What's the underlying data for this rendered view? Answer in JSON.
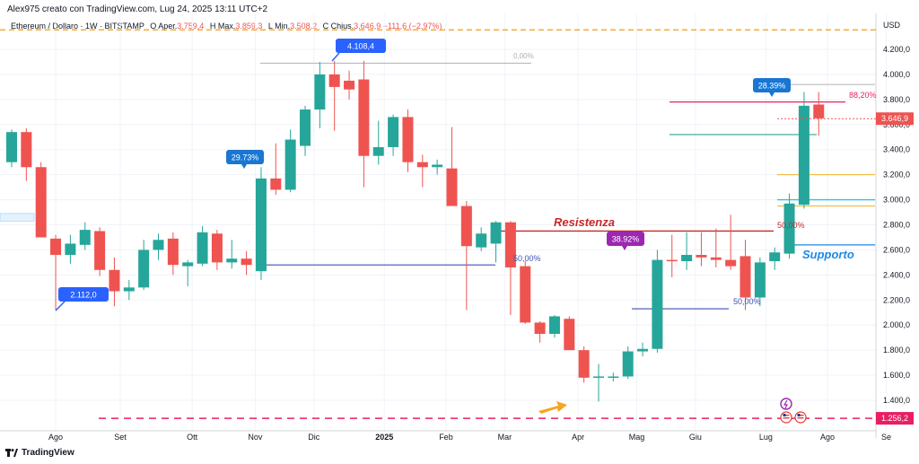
{
  "header": {
    "author_line": "Alex975 creato con TradingView.com, Lug 24, 2025 13:11 UTC+2",
    "symbol": "Ethereum / Dollaro · 1W · BITSTAMP",
    "ohlc": {
      "open_label": "O",
      "open_prefix": "Aper.",
      "open": "3.759,4",
      "high_label": "H",
      "high_prefix": "Max.",
      "high": "3.859,3",
      "low_label": "L",
      "low_prefix": "Min.",
      "low": "3.508,2",
      "close_label": "C",
      "close_prefix": "Chius.",
      "close": "3.646,9",
      "change": "−111,6 (−2,97%)"
    }
  },
  "footer": {
    "brand": "TradingView"
  },
  "chart_data": {
    "type": "candlestick",
    "currency_label": "USD",
    "ylim": [
      1200,
      4500
    ],
    "y_ticks": [
      {
        "value": 4200,
        "label": "4.200,0"
      },
      {
        "value": 4000,
        "label": "4.000,0"
      },
      {
        "value": 3800,
        "label": "3.800,0"
      },
      {
        "value": 3600,
        "label": "3.600,0"
      },
      {
        "value": 3400,
        "label": "3.400,0"
      },
      {
        "value": 3200,
        "label": "3.200,0"
      },
      {
        "value": 3000,
        "label": "3.000,0"
      },
      {
        "value": 2800,
        "label": "2.800,0"
      },
      {
        "value": 2600,
        "label": "2.600,0"
      },
      {
        "value": 2400,
        "label": "2.400,0"
      },
      {
        "value": 2200,
        "label": "2.200,0"
      },
      {
        "value": 2000,
        "label": "2.000,0"
      },
      {
        "value": 1800,
        "label": "1.800,0"
      },
      {
        "value": 1600,
        "label": "1.600,0"
      },
      {
        "value": 1400,
        "label": "1.400,0"
      }
    ],
    "x_ticks": [
      {
        "index": 3,
        "label": "Ago"
      },
      {
        "index": 7.4,
        "label": "Set"
      },
      {
        "index": 12.3,
        "label": "Ott"
      },
      {
        "index": 16.6,
        "label": "Nov"
      },
      {
        "index": 20.6,
        "label": "Dic"
      },
      {
        "index": 25.4,
        "label": "2025"
      },
      {
        "index": 29.6,
        "label": "Feb"
      },
      {
        "index": 33.6,
        "label": "Mar"
      },
      {
        "index": 38.6,
        "label": "Apr"
      },
      {
        "index": 42.6,
        "label": "Mag"
      },
      {
        "index": 46.6,
        "label": "Giu"
      },
      {
        "index": 51.4,
        "label": "Lug"
      },
      {
        "index": 55.6,
        "label": "Ago"
      },
      {
        "index": 59.6,
        "label": "Se"
      }
    ],
    "candles": [
      {
        "o": 3300,
        "h": 3560,
        "l": 3260,
        "c": 3540
      },
      {
        "o": 3540,
        "h": 3570,
        "l": 3150,
        "c": 3260
      },
      {
        "o": 3260,
        "h": 3300,
        "l": 2700,
        "c": 2700
      },
      {
        "o": 2690,
        "h": 2720,
        "l": 2120,
        "c": 2560
      },
      {
        "o": 2560,
        "h": 2720,
        "l": 2490,
        "c": 2650
      },
      {
        "o": 2640,
        "h": 2820,
        "l": 2600,
        "c": 2760
      },
      {
        "o": 2750,
        "h": 2780,
        "l": 2390,
        "c": 2440
      },
      {
        "o": 2440,
        "h": 2540,
        "l": 2150,
        "c": 2270
      },
      {
        "o": 2270,
        "h": 2360,
        "l": 2200,
        "c": 2300
      },
      {
        "o": 2300,
        "h": 2680,
        "l": 2280,
        "c": 2600
      },
      {
        "o": 2600,
        "h": 2730,
        "l": 2520,
        "c": 2680
      },
      {
        "o": 2690,
        "h": 2740,
        "l": 2400,
        "c": 2480
      },
      {
        "o": 2470,
        "h": 2520,
        "l": 2310,
        "c": 2500
      },
      {
        "o": 2490,
        "h": 2790,
        "l": 2470,
        "c": 2740
      },
      {
        "o": 2730,
        "h": 2760,
        "l": 2440,
        "c": 2500
      },
      {
        "o": 2500,
        "h": 2680,
        "l": 2450,
        "c": 2530
      },
      {
        "o": 2530,
        "h": 2590,
        "l": 2400,
        "c": 2480
      },
      {
        "o": 2430,
        "h": 3260,
        "l": 2360,
        "c": 3170
      },
      {
        "o": 3170,
        "h": 3450,
        "l": 3040,
        "c": 3080
      },
      {
        "o": 3080,
        "h": 3560,
        "l": 3060,
        "c": 3480
      },
      {
        "o": 3430,
        "h": 3750,
        "l": 3350,
        "c": 3720
      },
      {
        "o": 3720,
        "h": 4100,
        "l": 3570,
        "c": 4000
      },
      {
        "o": 4000,
        "h": 4108,
        "l": 3550,
        "c": 3900
      },
      {
        "o": 3950,
        "h": 4030,
        "l": 3800,
        "c": 3880
      },
      {
        "o": 3960,
        "h": 4108,
        "l": 3100,
        "c": 3350
      },
      {
        "o": 3350,
        "h": 3630,
        "l": 3280,
        "c": 3420
      },
      {
        "o": 3420,
        "h": 3680,
        "l": 3350,
        "c": 3660
      },
      {
        "o": 3660,
        "h": 3720,
        "l": 3220,
        "c": 3300
      },
      {
        "o": 3300,
        "h": 3360,
        "l": 3100,
        "c": 3260
      },
      {
        "o": 3260,
        "h": 3320,
        "l": 3200,
        "c": 3280
      },
      {
        "o": 3250,
        "h": 3580,
        "l": 2950,
        "c": 2950
      },
      {
        "o": 2950,
        "h": 2990,
        "l": 2120,
        "c": 2630
      },
      {
        "o": 2620,
        "h": 2780,
        "l": 2590,
        "c": 2730
      },
      {
        "o": 2650,
        "h": 2830,
        "l": 2500,
        "c": 2820
      },
      {
        "o": 2820,
        "h": 2830,
        "l": 2080,
        "c": 2460
      },
      {
        "o": 2470,
        "h": 2510,
        "l": 2010,
        "c": 2020
      },
      {
        "o": 2020,
        "h": 2030,
        "l": 1860,
        "c": 1930
      },
      {
        "o": 1930,
        "h": 2080,
        "l": 1900,
        "c": 2070
      },
      {
        "o": 2050,
        "h": 2070,
        "l": 1800,
        "c": 1800
      },
      {
        "o": 1800,
        "h": 1830,
        "l": 1540,
        "c": 1580
      },
      {
        "o": 1580,
        "h": 1690,
        "l": 1390,
        "c": 1590
      },
      {
        "o": 1590,
        "h": 1620,
        "l": 1550,
        "c": 1590
      },
      {
        "o": 1590,
        "h": 1830,
        "l": 1570,
        "c": 1790
      },
      {
        "o": 1790,
        "h": 1860,
        "l": 1750,
        "c": 1810
      },
      {
        "o": 1810,
        "h": 2600,
        "l": 1780,
        "c": 2520
      },
      {
        "o": 2520,
        "h": 2720,
        "l": 2380,
        "c": 2510
      },
      {
        "o": 2510,
        "h": 2740,
        "l": 2440,
        "c": 2560
      },
      {
        "o": 2560,
        "h": 2740,
        "l": 2470,
        "c": 2540
      },
      {
        "o": 2540,
        "h": 2770,
        "l": 2460,
        "c": 2520
      },
      {
        "o": 2520,
        "h": 2880,
        "l": 2440,
        "c": 2470
      },
      {
        "o": 2550,
        "h": 2680,
        "l": 2120,
        "c": 2220
      },
      {
        "o": 2220,
        "h": 2540,
        "l": 2150,
        "c": 2500
      },
      {
        "o": 2510,
        "h": 2620,
        "l": 2440,
        "c": 2580
      },
      {
        "o": 2570,
        "h": 3050,
        "l": 2530,
        "c": 2970
      },
      {
        "o": 2960,
        "h": 3860,
        "l": 2930,
        "c": 3750
      },
      {
        "o": 3760,
        "h": 3860,
        "l": 3510,
        "c": 3650
      }
    ],
    "lines": [
      {
        "name": "top-dashed",
        "value": 4356,
        "style": "dashed",
        "color": "#f39c12"
      },
      {
        "name": "bottom-dashed",
        "value": 1256.2,
        "style": "dashed",
        "color": "#e91e63"
      },
      {
        "name": "resistance",
        "value": 2750,
        "color": "#c62828"
      },
      {
        "name": "fib-50-left",
        "value": 2480,
        "color": "#3f51b5"
      },
      {
        "name": "fib-50-right",
        "value": 2130,
        "color": "#3f51b5"
      },
      {
        "name": "support",
        "value": 2640,
        "color": "#1e88e5"
      },
      {
        "name": "fib-88",
        "value": 3780,
        "color": "#e91e63"
      },
      {
        "name": "level-teal",
        "value": 3520,
        "color": "#26a69a"
      },
      {
        "name": "level-orange",
        "value": 3200,
        "color": "#f0b429"
      },
      {
        "name": "level-cyan",
        "value": 3000,
        "color": "#26c6da"
      },
      {
        "name": "level-orange2",
        "value": 2950,
        "color": "#f0b429"
      },
      {
        "name": "fib-0",
        "value": 4090,
        "color": "#b0b0b0"
      }
    ],
    "annotations": {
      "high_label": "4.108,4",
      "low_label": "2.112,0",
      "pct_1": "29.73%",
      "pct_2": "38.92%",
      "pct_3": "28.39%",
      "resistenza": "Resistenza",
      "supporto": "Supporto",
      "fib_0": "0,00%",
      "fib_50_a": "50,00%",
      "fib_50_b": "50,00%",
      "fib_50_c": "50,00%",
      "fib_88": "88,20%",
      "price_now": "3.646,9",
      "price_low": "1.256,2"
    }
  }
}
